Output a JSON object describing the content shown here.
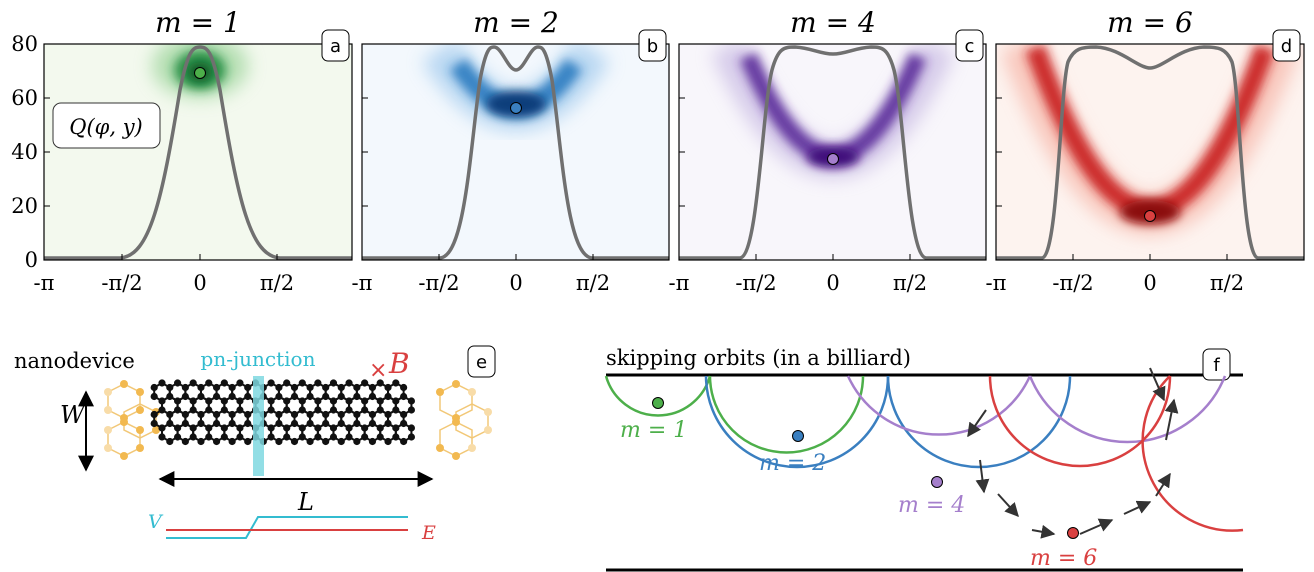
{
  "colors": {
    "m1": "#4daf4a",
    "m2": "#3a7fc0",
    "m4": "#a57fcc",
    "m6": "#d94040",
    "curve": "#707070",
    "junction": "#7fd8e0",
    "lead": "#f2b950",
    "lattice": "#111111",
    "v_line": "#33bcd0",
    "e_line": "#d94040"
  },
  "panels": [
    {
      "letter": "a",
      "title": "m = 1",
      "colormap": "green",
      "marker_phi": 0,
      "marker_y": 68,
      "curve": "m1"
    },
    {
      "letter": "b",
      "title": "m = 2",
      "colormap": "blue",
      "marker_phi": 0,
      "marker_y": 55,
      "curve": "m2"
    },
    {
      "letter": "c",
      "title": "m = 4",
      "colormap": "purple",
      "marker_phi": 0,
      "marker_y": 36,
      "curve": "m4"
    },
    {
      "letter": "d",
      "title": "m = 6",
      "colormap": "red",
      "marker_phi": 0,
      "marker_y": 15,
      "curve": "m6"
    }
  ],
  "axes": {
    "ylim": [
      0,
      80
    ],
    "yticks": [
      "0",
      "20",
      "40",
      "60",
      "80"
    ],
    "xticks": [
      "-π",
      "-π/2",
      "0",
      "π/2"
    ],
    "q_label": "Q(φ, y)"
  },
  "device": {
    "letter": "e",
    "nanodevice_label": "nanodevice",
    "junction_label": "pn-junction",
    "field_symbol": "×",
    "field_label": "B",
    "width_label": "W",
    "length_label": "L",
    "v_label": "V",
    "e_label": "E"
  },
  "orbits": {
    "letter": "f",
    "title": "skipping orbits (in a billiard)",
    "labels": [
      {
        "text": "m = 1",
        "color_key": "m1"
      },
      {
        "text": "m = 2",
        "color_key": "m2"
      },
      {
        "text": "m = 4",
        "color_key": "m4"
      },
      {
        "text": "m = 6",
        "color_key": "m6"
      }
    ]
  }
}
